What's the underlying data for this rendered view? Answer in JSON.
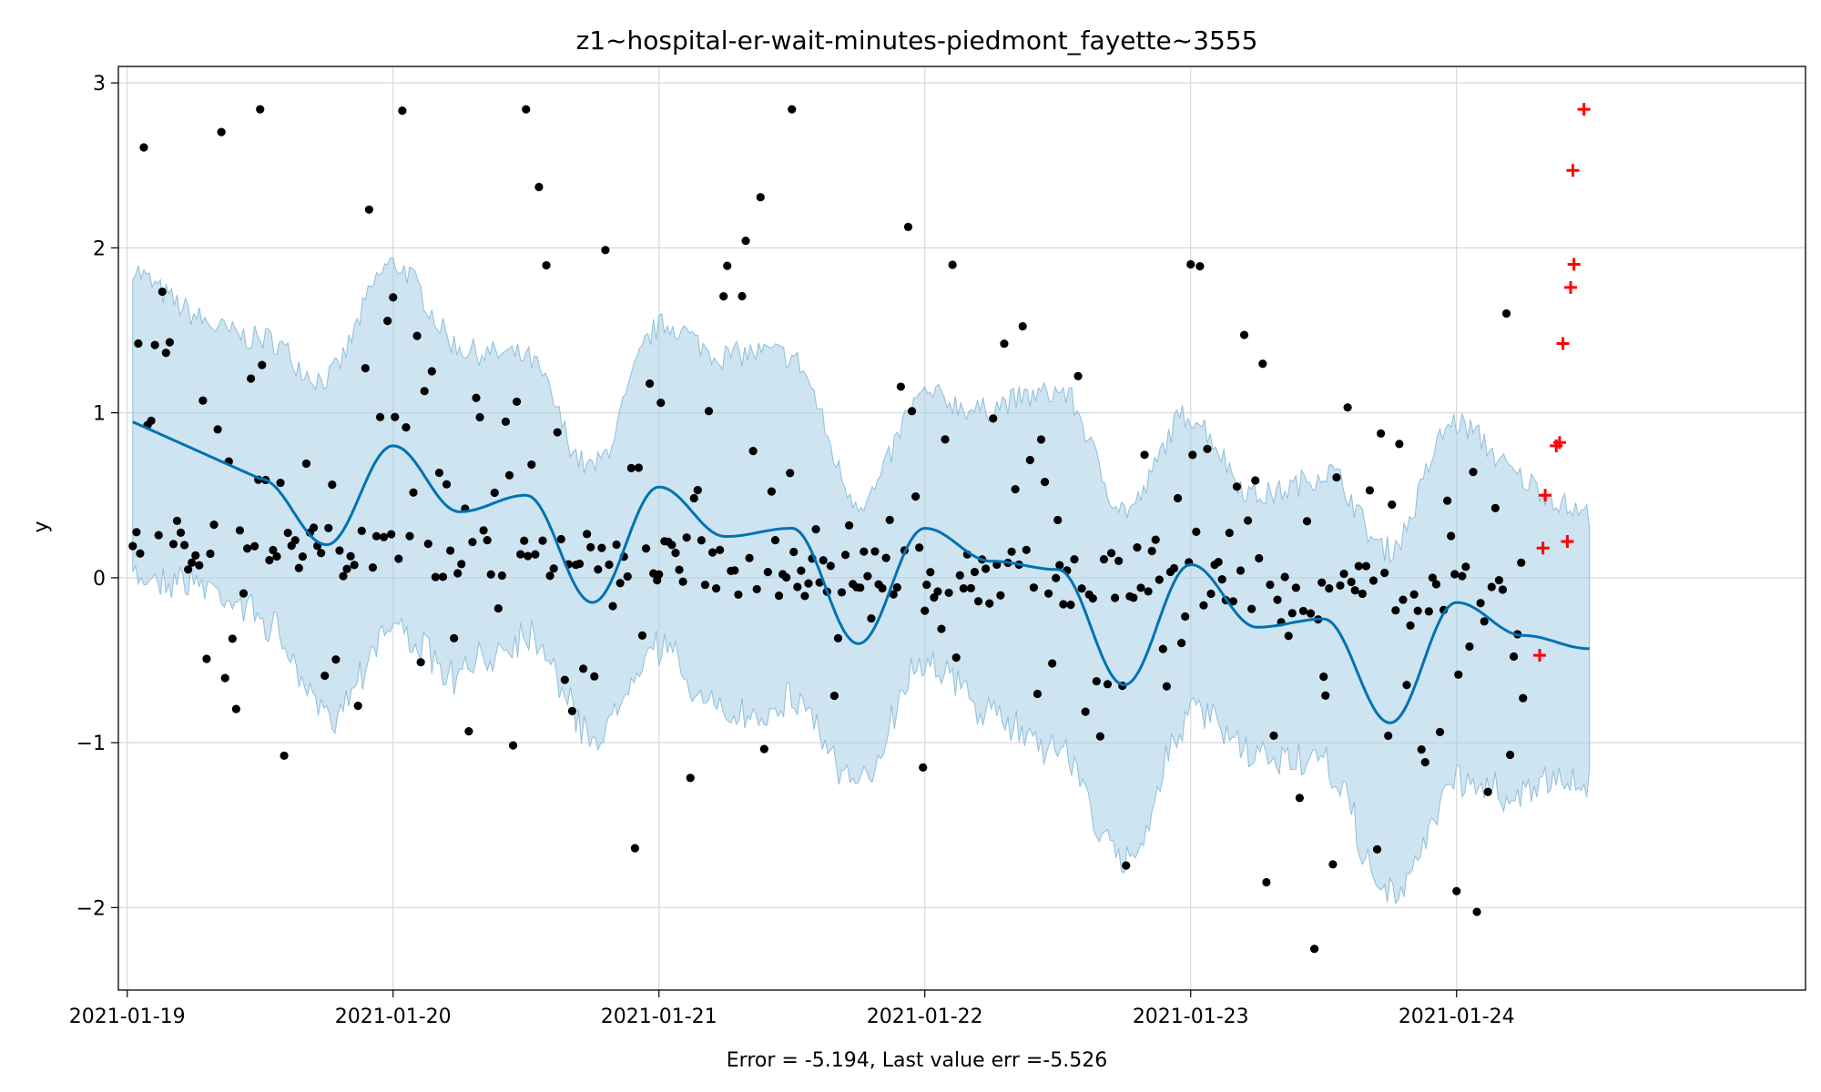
{
  "chart_data": {
    "type": "scatter",
    "title": "z1~hospital-er-wait-minutes-piedmont_fayette~3555",
    "xlabel": "Error = -5.194, Last value err =-5.526",
    "ylabel": "y",
    "x_start": "2021-01-19",
    "x_end": "2021-01-25",
    "xlim": [
      "2021-01-18T23:12",
      "2021-01-25T07:30"
    ],
    "ylim": [
      -2.5,
      3.1
    ],
    "x_ticks": [
      "2021-01-19",
      "2021-01-20",
      "2021-01-21",
      "2021-01-22",
      "2021-01-23",
      "2021-01-24"
    ],
    "y_ticks": [
      -2,
      -1,
      0,
      1,
      2,
      3
    ],
    "y_tick_labels": [
      "−2",
      "−1",
      "0",
      "1",
      "2",
      "3"
    ],
    "grid": true,
    "colors": {
      "observed": "#000000",
      "forecast": "#0072B2",
      "interval": "#A6CEE3",
      "holdout": "#FF0000"
    },
    "forecast": {
      "x": [
        "2021-01-19T12:00",
        "2021-01-19T18:00",
        "2021-01-20T00:00",
        "2021-01-20T06:00",
        "2021-01-20T12:00",
        "2021-01-20T18:00",
        "2021-01-21T00:00",
        "2021-01-21T06:00",
        "2021-01-21T12:00",
        "2021-01-21T18:00",
        "2021-01-22T00:00",
        "2021-01-22T06:00",
        "2021-01-22T12:00",
        "2021-01-22T18:00",
        "2021-01-23T00:00",
        "2021-01-23T06:00",
        "2021-01-23T12:00",
        "2021-01-23T18:00",
        "2021-01-24T00:00",
        "2021-01-24T06:00",
        "2021-01-24T12:00"
      ],
      "y": [
        0.6,
        0.2,
        0.8,
        0.4,
        0.5,
        -0.15,
        0.55,
        0.25,
        0.3,
        -0.4,
        0.3,
        0.1,
        0.05,
        -0.65,
        0.08,
        -0.3,
        -0.25,
        -0.88,
        -0.15,
        -0.35,
        -0.43
      ]
    },
    "observed": {
      "x": [
        "2021-01-19T01:00",
        "2021-01-19T12:00",
        "2021-01-20T00:00",
        "2021-01-20T12:00",
        "2021-01-21T00:00",
        "2021-01-21T12:00",
        "2021-01-22T00:00",
        "2021-01-22T12:00",
        "2021-01-23T00:00",
        "2021-01-23T12:00",
        "2021-01-24T00:00",
        "2021-01-24T06:00"
      ],
      "y": [
        1.42,
        2.84,
        1.7,
        2.84,
        0.02,
        2.84,
        -0.2,
        0.35,
        1.9,
        -0.6,
        -1.9,
        -0.73
      ]
    },
    "holdout": {
      "x": [
        "2021-01-24T07:30",
        "2021-01-24T08:00",
        "2021-01-24T09:00",
        "2021-01-24T10:30",
        "2021-01-24T11:30"
      ],
      "y": [
        -0.47,
        0.5,
        0.8,
        2.47,
        2.84
      ]
    }
  }
}
